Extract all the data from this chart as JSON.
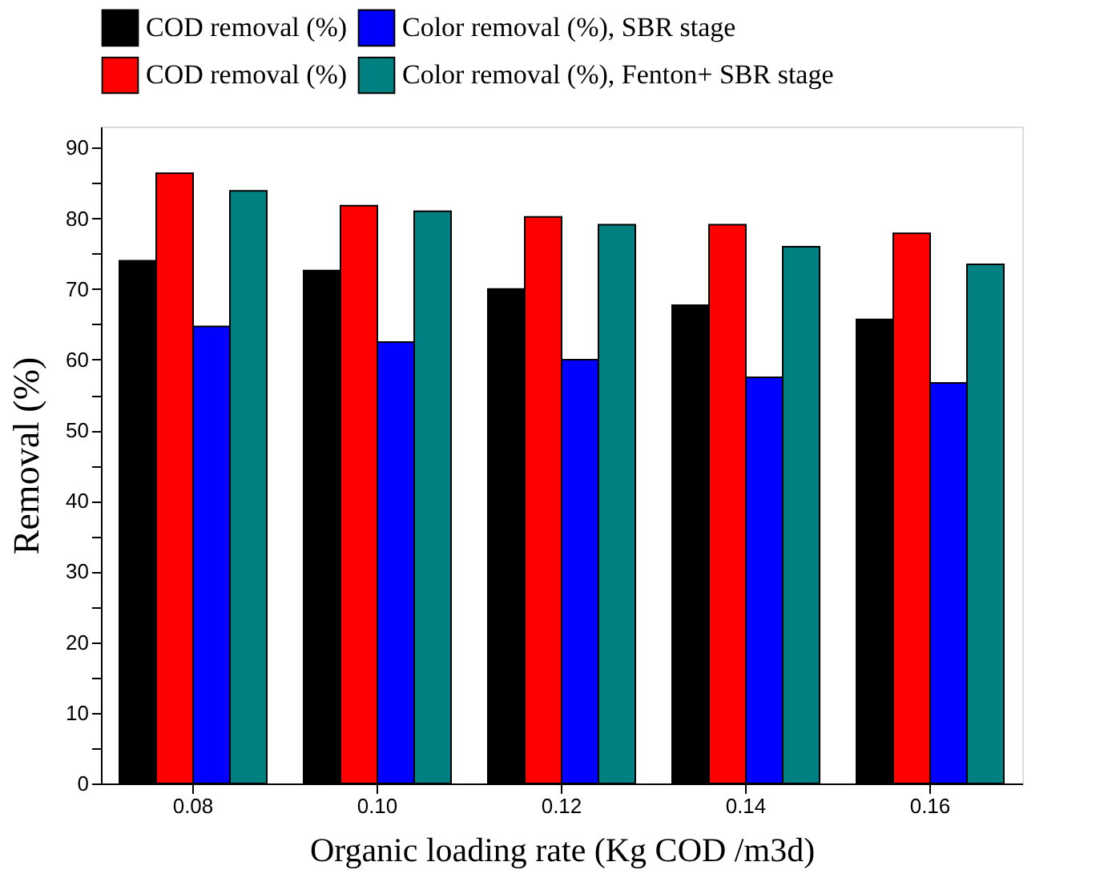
{
  "chart_data": {
    "type": "bar",
    "xlabel": "Organic loading rate (Kg COD /m3d)",
    "ylabel": "Removal (%)",
    "categories": [
      "0.08",
      "0.10",
      "0.12",
      "0.14",
      "0.16"
    ],
    "series": [
      {
        "name": "COD removal (%)",
        "color": "#000000",
        "values": [
          74.0,
          72.6,
          70.0,
          67.7,
          65.7
        ]
      },
      {
        "name": "COD removal (%)",
        "color": "#ff0000",
        "values": [
          86.4,
          81.8,
          80.2,
          79.1,
          77.9
        ]
      },
      {
        "name": "Color removal (%), SBR stage",
        "color": "#0000ff",
        "values": [
          64.7,
          62.5,
          60.0,
          57.5,
          56.7
        ]
      },
      {
        "name": "Color removal (%), Fenton+ SBR stage",
        "color": "#008080",
        "values": [
          83.9,
          81.0,
          79.1,
          76.0,
          73.5
        ]
      }
    ],
    "ylim": [
      0,
      93
    ],
    "yticks": [
      0,
      {
        "value": 5,
        "label": null
      },
      10,
      {
        "value": 15,
        "label": null
      },
      20,
      {
        "value": 25,
        "label": null
      },
      30,
      {
        "value": 35,
        "label": null
      },
      40,
      {
        "value": 45,
        "label": null
      },
      50,
      {
        "value": 55,
        "label": null
      },
      60,
      {
        "value": 65,
        "label": null
      },
      70,
      {
        "value": 75,
        "label": null
      },
      80,
      {
        "value": 85,
        "label": null
      },
      90
    ],
    "grid": false,
    "legend": "top"
  }
}
